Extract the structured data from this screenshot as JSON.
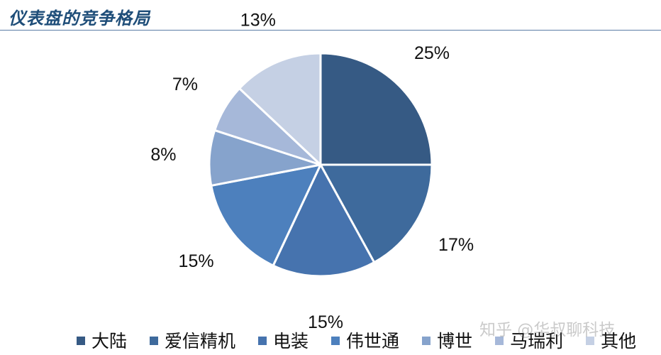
{
  "header": {
    "title": "仪表盘的竞争格局"
  },
  "watermark": "知乎 @华叔聊科技",
  "chart_data": {
    "type": "pie",
    "title": "",
    "slices": [
      {
        "name": "大陆",
        "value": 25,
        "label": "25%",
        "color": "#365a84"
      },
      {
        "name": "爱信精机",
        "value": 17,
        "label": "17%",
        "color": "#3e6a9c"
      },
      {
        "name": "电装",
        "value": 15,
        "label": "15%",
        "color": "#4673ae"
      },
      {
        "name": "伟世通",
        "value": 15,
        "label": "15%",
        "color": "#4d80bd"
      },
      {
        "name": "博世",
        "value": 8,
        "label": "8%",
        "color": "#86a3cc"
      },
      {
        "name": "马瑞利",
        "value": 7,
        "label": "7%",
        "color": "#a6b8d9"
      },
      {
        "name": "其他",
        "value": 13,
        "label": "13%",
        "color": "#c5d0e4"
      }
    ],
    "start": "12 o'clock",
    "direction": "clockwise",
    "legend": "bottom"
  }
}
